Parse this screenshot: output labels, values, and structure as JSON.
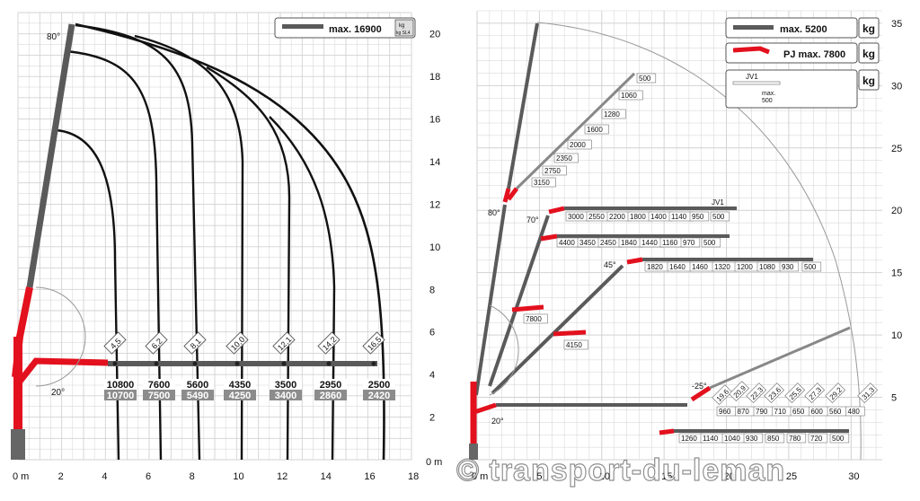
{
  "colors": {
    "boom_gray": "#5a5a5a",
    "boom_red": "#e3101e",
    "grid": "#c8c8c8",
    "curve": "#111111",
    "label_fill_dark": "#8c8c8c"
  },
  "left_chart": {
    "legend": {
      "max_label": "max. 16900",
      "unit_top": "kg",
      "unit_bottom": "kg SL4"
    },
    "x_ticks": [
      "0 m",
      "2",
      "4",
      "6",
      "8",
      "10",
      "12",
      "14",
      "16",
      "18"
    ],
    "y_ticks": [
      "2",
      "4",
      "6",
      "8",
      "10",
      "12",
      "14",
      "16",
      "18",
      "20"
    ],
    "y_zero_label": "0 m",
    "angle_top": "80°",
    "angle_bottom": "20°",
    "reach_labels": [
      "4,5",
      "6,2",
      "8,1",
      "10,0",
      "12,1",
      "14,2",
      "16,5"
    ],
    "loads_top": [
      "10800",
      "7600",
      "5600",
      "4350",
      "3500",
      "2950",
      "2500"
    ],
    "loads_bottom": [
      "10700",
      "7500",
      "5490",
      "4250",
      "3400",
      "2860",
      "2420"
    ]
  },
  "right_chart": {
    "legend": [
      {
        "label": "max. 5200",
        "unit": "kg"
      },
      {
        "label": "PJ max. 7800",
        "unit": "kg"
      },
      {
        "label": "JV1",
        "sub": "max.",
        "sub2": "500",
        "unit": "kg"
      }
    ],
    "x_ticks": [
      "0 m",
      "5",
      "10",
      "15",
      "20",
      "25",
      "30"
    ],
    "y_ticks": [
      "5",
      "10",
      "15",
      "20",
      "25",
      "30",
      "35"
    ],
    "angles": {
      "a80": "80°",
      "a70": "70°",
      "a45": "45°",
      "a20": "20°",
      "aneg25": "-25°"
    },
    "vertical_loads": [
      "500",
      "1060",
      "1280",
      "1600",
      "2000",
      "2350",
      "2750",
      "3150"
    ],
    "row_70_jv1": [
      "3000",
      "2550",
      "2200",
      "1800",
      "1400",
      "1140",
      "950",
      "500"
    ],
    "row_70_jv1_tag": "JV1",
    "row_70": [
      "4400",
      "3450",
      "2450",
      "1840",
      "1440",
      "1160",
      "970",
      "500"
    ],
    "row_45": [
      "1820",
      "1640",
      "1460",
      "1320",
      "1200",
      "1080",
      "930",
      "500"
    ],
    "pj_short_1": "7800",
    "pj_short_2": "4150",
    "row_low": [
      "960",
      "870",
      "790",
      "710",
      "650",
      "600",
      "560",
      "480"
    ],
    "row_bottom": [
      "1260",
      "1140",
      "1040",
      "930",
      "850",
      "780",
      "720",
      "500"
    ],
    "diag_labels": [
      "19,6",
      "20,9",
      "22,3",
      "23,6",
      "25,5",
      "27,3",
      "29,2",
      "31,3"
    ]
  },
  "watermark": "© transport-du-leman"
}
